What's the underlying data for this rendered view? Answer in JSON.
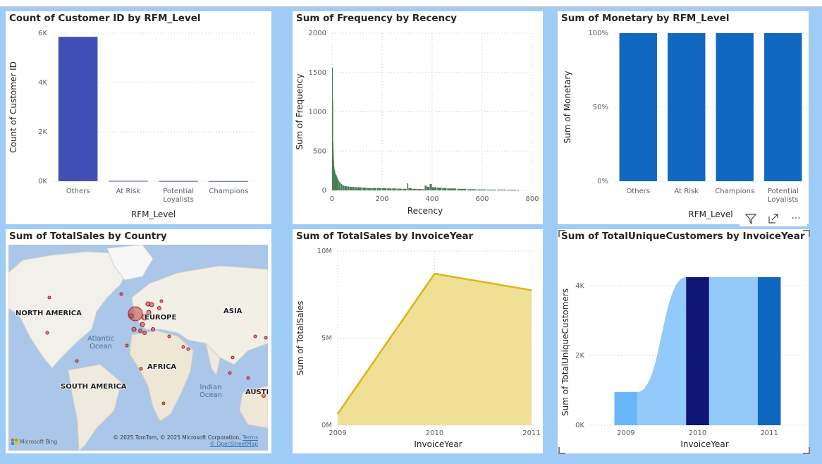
{
  "panels": {
    "p1": {
      "title": "Count of Customer ID by RFM_Level",
      "chart_data": {
        "type": "bar",
        "categories": [
          "Others",
          "At Risk",
          "Potential Loyalists",
          "Champions"
        ],
        "values": [
          5850,
          15,
          10,
          8
        ],
        "xlabel": "RFM_Level",
        "ylabel": "Count of Customer ID",
        "ylim": [
          0,
          6000
        ],
        "yticks": [
          "0K",
          "2K",
          "4K",
          "6K"
        ],
        "ytick_values": [
          0,
          2000,
          4000,
          6000
        ],
        "color": "#3f4fb4",
        "grid": true
      }
    },
    "p2": {
      "title": "Sum of Frequency by Recency",
      "chart_data": {
        "type": "bar",
        "x": [
          0,
          1,
          2,
          3,
          4,
          5,
          6,
          8,
          10,
          12,
          14,
          16,
          18,
          21,
          24,
          28,
          32,
          36,
          40,
          45,
          50,
          60,
          70,
          80,
          90,
          100,
          120,
          140,
          160,
          180,
          200,
          220,
          240,
          260,
          280,
          300,
          305,
          320,
          340,
          360,
          370,
          380,
          390,
          400,
          420,
          440,
          460,
          500,
          540,
          580,
          620,
          660,
          700,
          740
        ],
        "values": [
          1560,
          1140,
          620,
          520,
          430,
          380,
          300,
          270,
          240,
          210,
          200,
          190,
          170,
          150,
          130,
          110,
          95,
          80,
          70,
          60,
          55,
          50,
          45,
          45,
          40,
          40,
          35,
          30,
          30,
          30,
          28,
          25,
          25,
          22,
          20,
          90,
          30,
          20,
          18,
          15,
          60,
          45,
          80,
          40,
          35,
          30,
          25,
          20,
          15,
          12,
          10,
          10,
          8,
          6
        ],
        "xlabel": "Recency",
        "ylabel": "Sum of Frequency",
        "xlim": [
          0,
          800
        ],
        "ylim": [
          0,
          2000
        ],
        "xticks": [
          0,
          200,
          400,
          600,
          800
        ],
        "yticks": [
          0,
          500,
          1000,
          1500,
          2000
        ],
        "color": "#4a7f55",
        "grid": true
      }
    },
    "p3": {
      "title": "Sum of Monetary by RFM_Level",
      "chart_data": {
        "type": "bar",
        "categories": [
          "Others",
          "At Risk",
          "Champions",
          "Potential Loyalists"
        ],
        "values": [
          100,
          100,
          100,
          100
        ],
        "xlabel": "RFM_Level",
        "ylabel": "Sum of Monetary",
        "ylim": [
          0,
          100
        ],
        "yticks": [
          "0%",
          "50%",
          "100%"
        ],
        "ytick_values": [
          0,
          50,
          100
        ],
        "color": "#1168c0",
        "grid": true
      }
    },
    "p4": {
      "title": "Sum of TotalSales by Country",
      "labels": {
        "north_america": "NORTH AMERICA",
        "asia": "ASIA",
        "europe": "EUROPE",
        "africa": "AFRICA",
        "south_america": "SOUTH AMERICA",
        "australia": "AUSTR",
        "atlantic": "Atlantic Ocean",
        "indian": "Indian Ocean"
      },
      "copyright": "© 2025 TomTom, © 2025 Microsoft Corporation,",
      "terms": "Terms",
      "osm": "© OpenStreetMap",
      "bing": "Microsoft Bing",
      "bubble_color": "#c0504d"
    },
    "p5": {
      "title": "Sum of TotalSales by InvoiceYear",
      "chart_data": {
        "type": "area",
        "x": [
          2009,
          2010,
          2011
        ],
        "values": [
          650000,
          8700000,
          7750000
        ],
        "xlabel": "InvoiceYear",
        "ylabel": "Sum of TotalSales",
        "ylim": [
          0,
          10000000
        ],
        "yticks": [
          "0M",
          "5M",
          "10M"
        ],
        "ytick_values": [
          0,
          5000000,
          10000000
        ],
        "line_color": "#d9b611",
        "fill_color": "#f0e096",
        "grid": true
      }
    },
    "p6": {
      "title": "Sum of TotalUniqueCustomers by InvoiceYear",
      "chart_data": {
        "type": "bar",
        "categories": [
          "2009",
          "2010",
          "2011"
        ],
        "values": [
          955,
          4250,
          4250
        ],
        "xlabel": "InvoiceYear",
        "ylabel": "Sum of TotalUniqueCustomers",
        "ylim": [
          0,
          5000
        ],
        "yticks": [
          "0K",
          "2K",
          "4K"
        ],
        "ytick_values": [
          0,
          2000,
          4000
        ],
        "bar_colors": [
          "#6ab6fb",
          "#0e1574",
          "#0d67bf"
        ],
        "ribbon_color": "#93c9fb",
        "grid": true
      }
    }
  },
  "toolbar": {
    "filter_icon": "filter-icon",
    "focus_icon": "focus-mode-icon",
    "more_label": "···"
  }
}
